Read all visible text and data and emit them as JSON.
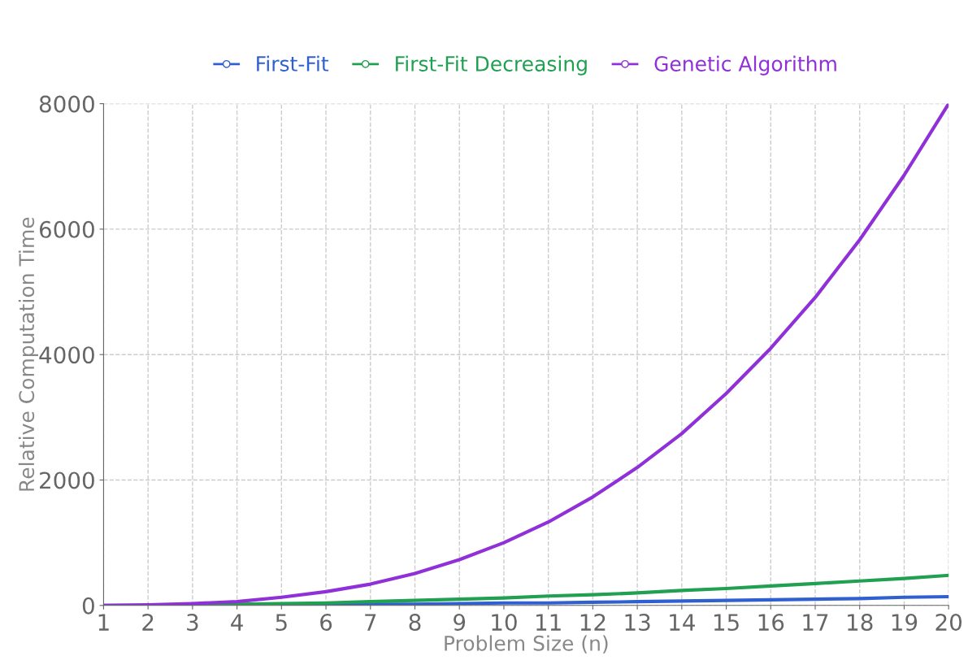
{
  "chart_data": {
    "type": "line",
    "xlabel": "Problem Size (n)",
    "ylabel": "Relative Computation Time",
    "x": [
      1,
      2,
      3,
      4,
      5,
      6,
      7,
      8,
      9,
      10,
      11,
      12,
      13,
      14,
      15,
      16,
      17,
      18,
      19,
      20
    ],
    "series": [
      {
        "name": "First-Fit",
        "color": "#3060d0",
        "values": [
          null,
          null,
          null,
          null,
          10,
          10,
          20,
          20,
          30,
          40,
          40,
          50,
          60,
          70,
          80,
          90,
          100,
          110,
          130,
          140
        ]
      },
      {
        "name": "First-Fit Decreasing",
        "color": "#20a050",
        "values": [
          0,
          0,
          10,
          20,
          30,
          40,
          60,
          80,
          100,
          120,
          150,
          170,
          200,
          240,
          270,
          310,
          350,
          390,
          430,
          480
        ]
      },
      {
        "name": "Genetic Algorithm",
        "color": "#9030d8",
        "values": [
          0,
          10,
          30,
          60,
          130,
          220,
          340,
          510,
          730,
          1000,
          1330,
          1730,
          2200,
          2740,
          3380,
          4100,
          4910,
          5830,
          6860,
          8000
        ]
      }
    ],
    "xlim": [
      1,
      20
    ],
    "xticks": [
      1,
      2,
      3,
      4,
      5,
      6,
      7,
      8,
      9,
      10,
      11,
      12,
      13,
      14,
      15,
      16,
      17,
      18,
      19,
      20
    ],
    "ylim": [
      0,
      8000
    ],
    "yticks": [
      0,
      2000,
      4000,
      6000,
      8000
    ],
    "grid": true,
    "legend": "top",
    "marker": "none",
    "line_style": "solid"
  }
}
